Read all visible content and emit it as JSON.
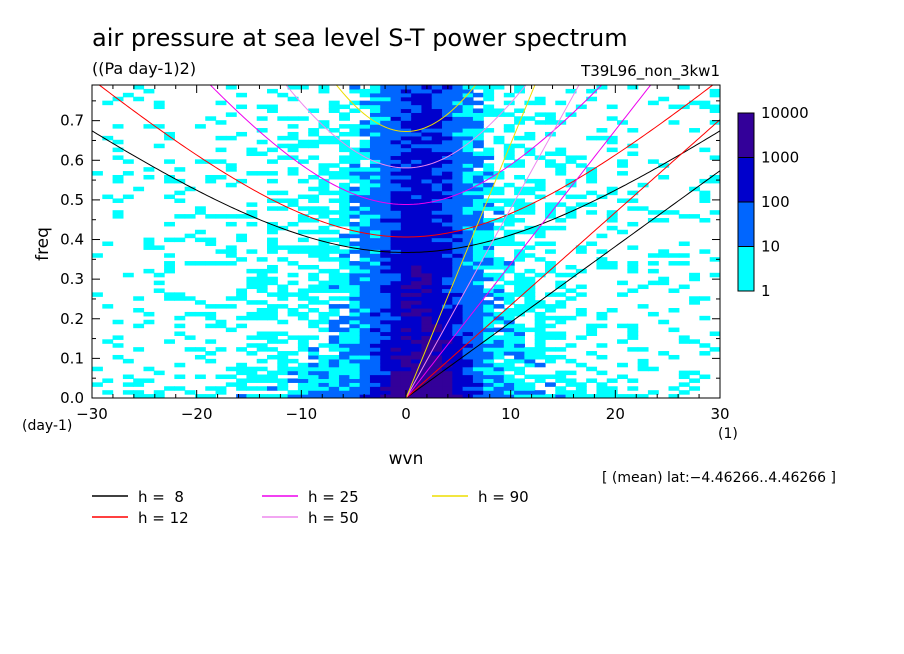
{
  "chart_data": {
    "type": "heatmap",
    "title": "air pressure at sea level S-T power spectrum",
    "subtitle": "((Pa day-1)2)",
    "run_label": "T39L96_non_3kw1",
    "xlabel": "wvn",
    "ylabel": "freq",
    "x_unit": "(1)",
    "y_unit": "(day-1)",
    "xlim": [
      -30,
      30
    ],
    "ylim": [
      0,
      0.79
    ],
    "xticks": [
      -30,
      -20,
      -10,
      0,
      10,
      20,
      30
    ],
    "yticks": [
      0.0,
      0.1,
      0.2,
      0.3,
      0.4,
      0.5,
      0.6,
      0.7
    ],
    "xtick_labels": [
      "−30",
      "−20",
      "−10",
      "0",
      "10",
      "20",
      "30"
    ],
    "ytick_labels": [
      "0.0",
      "0.1",
      "0.2",
      "0.3",
      "0.4",
      "0.5",
      "0.6",
      "0.7"
    ],
    "annotation": "[ (mean) lat:−4.46266..4.46266 ]",
    "colorbar": {
      "levels": [
        "1",
        "10",
        "100",
        "1000",
        "10000"
      ],
      "colors": [
        "#00ffff",
        "#0066ff",
        "#0000cc",
        "#330099"
      ]
    },
    "dispersion_curves": [
      {
        "label": "h =  8",
        "h": 8,
        "color": "#000000"
      },
      {
        "label": "h = 12",
        "h": 12,
        "color": "#ff0000"
      },
      {
        "label": "h = 25",
        "h": 25,
        "color": "#ee00ee"
      },
      {
        "label": "h = 50",
        "h": 50,
        "color": "#ee88ee"
      },
      {
        "label": "h = 90",
        "h": 90,
        "color": "#eedd00"
      }
    ],
    "grid": false,
    "legend_position": "bottom-left"
  }
}
